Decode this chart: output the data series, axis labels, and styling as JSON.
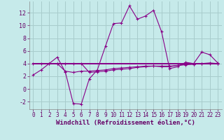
{
  "xlabel": "Windchill (Refroidissement éolien,°C)",
  "bg_color": "#c6eaea",
  "grid_color": "#a8cccc",
  "line_color": "#880088",
  "xlim": [
    -0.5,
    23.5
  ],
  "ylim": [
    -3.2,
    13.8
  ],
  "yticks": [
    -2,
    0,
    2,
    4,
    6,
    8,
    10,
    12
  ],
  "xticks": [
    0,
    1,
    2,
    3,
    4,
    5,
    6,
    7,
    8,
    9,
    10,
    11,
    12,
    13,
    14,
    15,
    16,
    17,
    18,
    19,
    20,
    21,
    22,
    23
  ],
  "curve1_x": [
    0,
    1,
    2,
    3,
    4,
    5,
    6,
    7,
    8,
    9,
    10,
    11,
    12,
    13,
    14,
    15,
    16,
    17,
    18,
    19,
    20,
    21,
    22,
    23
  ],
  "curve1_y": [
    2.2,
    3.0,
    4.0,
    5.0,
    2.7,
    -2.3,
    -2.4,
    1.6,
    3.0,
    6.7,
    10.3,
    10.4,
    13.1,
    11.0,
    11.5,
    12.4,
    9.0,
    3.2,
    3.5,
    4.2,
    4.0,
    5.8,
    5.4,
    4.1
  ],
  "curve2_x": [
    0,
    1,
    2,
    3,
    4,
    5,
    6,
    7,
    8,
    9,
    10,
    11,
    12,
    13,
    14,
    15,
    16,
    17,
    18,
    19,
    20,
    21,
    22,
    23
  ],
  "curve2_y": [
    4.0,
    4.0,
    4.0,
    4.0,
    4.0,
    4.0,
    4.0,
    2.6,
    2.7,
    2.8,
    3.0,
    3.1,
    3.2,
    3.4,
    3.5,
    3.6,
    3.5,
    3.5,
    3.7,
    3.9,
    3.9,
    4.0,
    4.1,
    4.0
  ],
  "curve3_x": [
    0,
    1,
    2,
    3,
    4,
    5,
    6,
    7,
    8,
    9,
    10,
    11,
    12,
    13,
    14,
    15,
    16,
    17,
    18,
    19,
    20,
    21,
    22,
    23
  ],
  "curve3_y": [
    4.0,
    4.0,
    4.0,
    4.0,
    4.0,
    4.0,
    4.0,
    4.0,
    4.0,
    4.0,
    4.0,
    4.0,
    4.0,
    4.0,
    4.0,
    4.0,
    4.0,
    4.0,
    4.0,
    4.0,
    4.0,
    4.0,
    4.0,
    4.0
  ],
  "curve4_x": [
    3,
    4,
    5,
    6,
    7,
    8,
    9,
    10,
    11,
    12,
    13,
    14,
    15,
    16,
    17,
    18,
    19,
    20,
    21,
    22,
    23
  ],
  "curve4_y": [
    4.0,
    2.8,
    2.6,
    2.8,
    2.8,
    2.9,
    3.0,
    3.2,
    3.3,
    3.4,
    3.5,
    3.6,
    3.6,
    3.6,
    3.6,
    3.7,
    3.8,
    3.9,
    4.0,
    4.0,
    4.0
  ],
  "xlabel_fontsize": 6.5,
  "tick_fontsize": 6.0,
  "xtick_fontsize": 5.5
}
